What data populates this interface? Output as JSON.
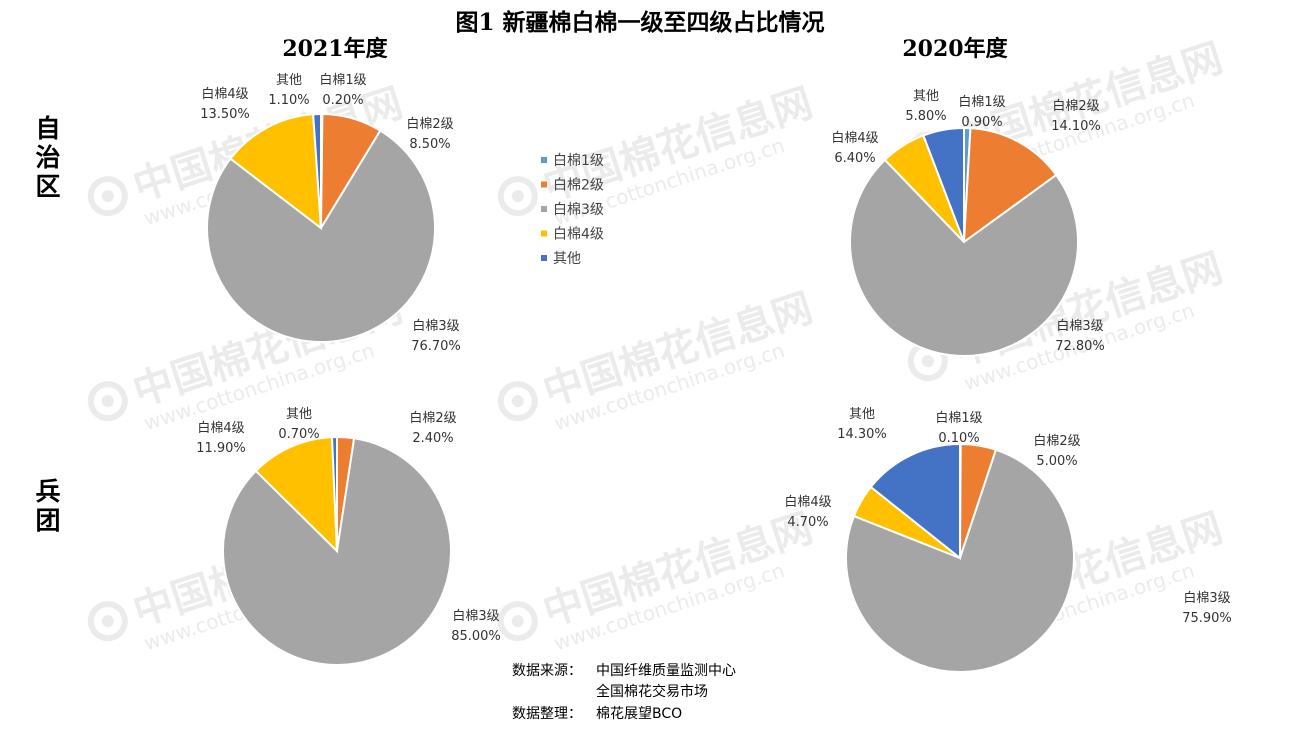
{
  "title": "图1 新疆棉白棉一级至四级占比情况",
  "columns": [
    "2021年度",
    "2020年度"
  ],
  "rows": [
    "自治区",
    "兵团"
  ],
  "watermark": {
    "cn": "中国棉花信息网",
    "en": "www.cottonchina.org.cn"
  },
  "source": {
    "label1": "数据来源：",
    "line1": "中国纤维质量监测中心",
    "line2": "全国棉花交易市场",
    "label2": "数据整理：",
    "line3": "棉花展望BCO"
  },
  "chart_data": [
    {
      "type": "pie",
      "title": "2021年度",
      "group": "自治区",
      "categories": [
        "白棉1级",
        "白棉2级",
        "白棉3级",
        "白棉4级",
        "其他"
      ],
      "values": [
        0.2,
        8.5,
        76.7,
        13.5,
        1.1
      ],
      "data_labels": [
        "0.20%",
        "8.50%",
        "76.70%",
        "13.50%",
        "1.10%"
      ]
    },
    {
      "type": "pie",
      "title": "2020年度",
      "group": "自治区",
      "categories": [
        "白棉1级",
        "白棉2级",
        "白棉3级",
        "白棉4级",
        "其他"
      ],
      "values": [
        0.9,
        14.1,
        72.8,
        6.4,
        5.8
      ],
      "data_labels": [
        "0.90%",
        "14.10%",
        "72.80%",
        "6.40%",
        "5.80%"
      ]
    },
    {
      "type": "pie",
      "title": "2021年度",
      "group": "兵团",
      "categories": [
        "白棉1级",
        "白棉2级",
        "白棉3级",
        "白棉4级",
        "其他"
      ],
      "values": [
        0.0,
        2.4,
        85.0,
        11.9,
        0.7
      ],
      "data_labels": [
        "",
        "2.40%",
        "85.00%",
        "11.90%",
        "0.70%"
      ]
    },
    {
      "type": "pie",
      "title": "2020年度",
      "group": "兵团",
      "categories": [
        "白棉1级",
        "白棉2级",
        "白棉3级",
        "白棉4级",
        "其他"
      ],
      "values": [
        0.1,
        5.0,
        75.9,
        4.7,
        14.3
      ],
      "data_labels": [
        "0.10%",
        "5.00%",
        "75.90%",
        "4.70%",
        "14.30%"
      ]
    }
  ],
  "legend": {
    "items": [
      "白棉1级",
      "白棉2级",
      "白棉3级",
      "白棉4级",
      "其他"
    ],
    "colors": [
      "#5B9BD5",
      "#ED7D31",
      "#A5A5A5",
      "#FFC000",
      "#4472C4"
    ]
  }
}
